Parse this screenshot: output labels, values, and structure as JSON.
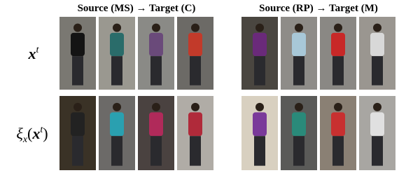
{
  "panels": [
    {
      "title": "Source (MS) → Target (C)"
    },
    {
      "title": "Source (RP) → Target (M)"
    }
  ],
  "rows": [
    {
      "label": {
        "main": "x",
        "sup": "t"
      }
    },
    {
      "label": {
        "main": "ξ",
        "sub": "x",
        "open": "(",
        "arg": "x",
        "sup": "t",
        "close": ")"
      }
    }
  ]
}
